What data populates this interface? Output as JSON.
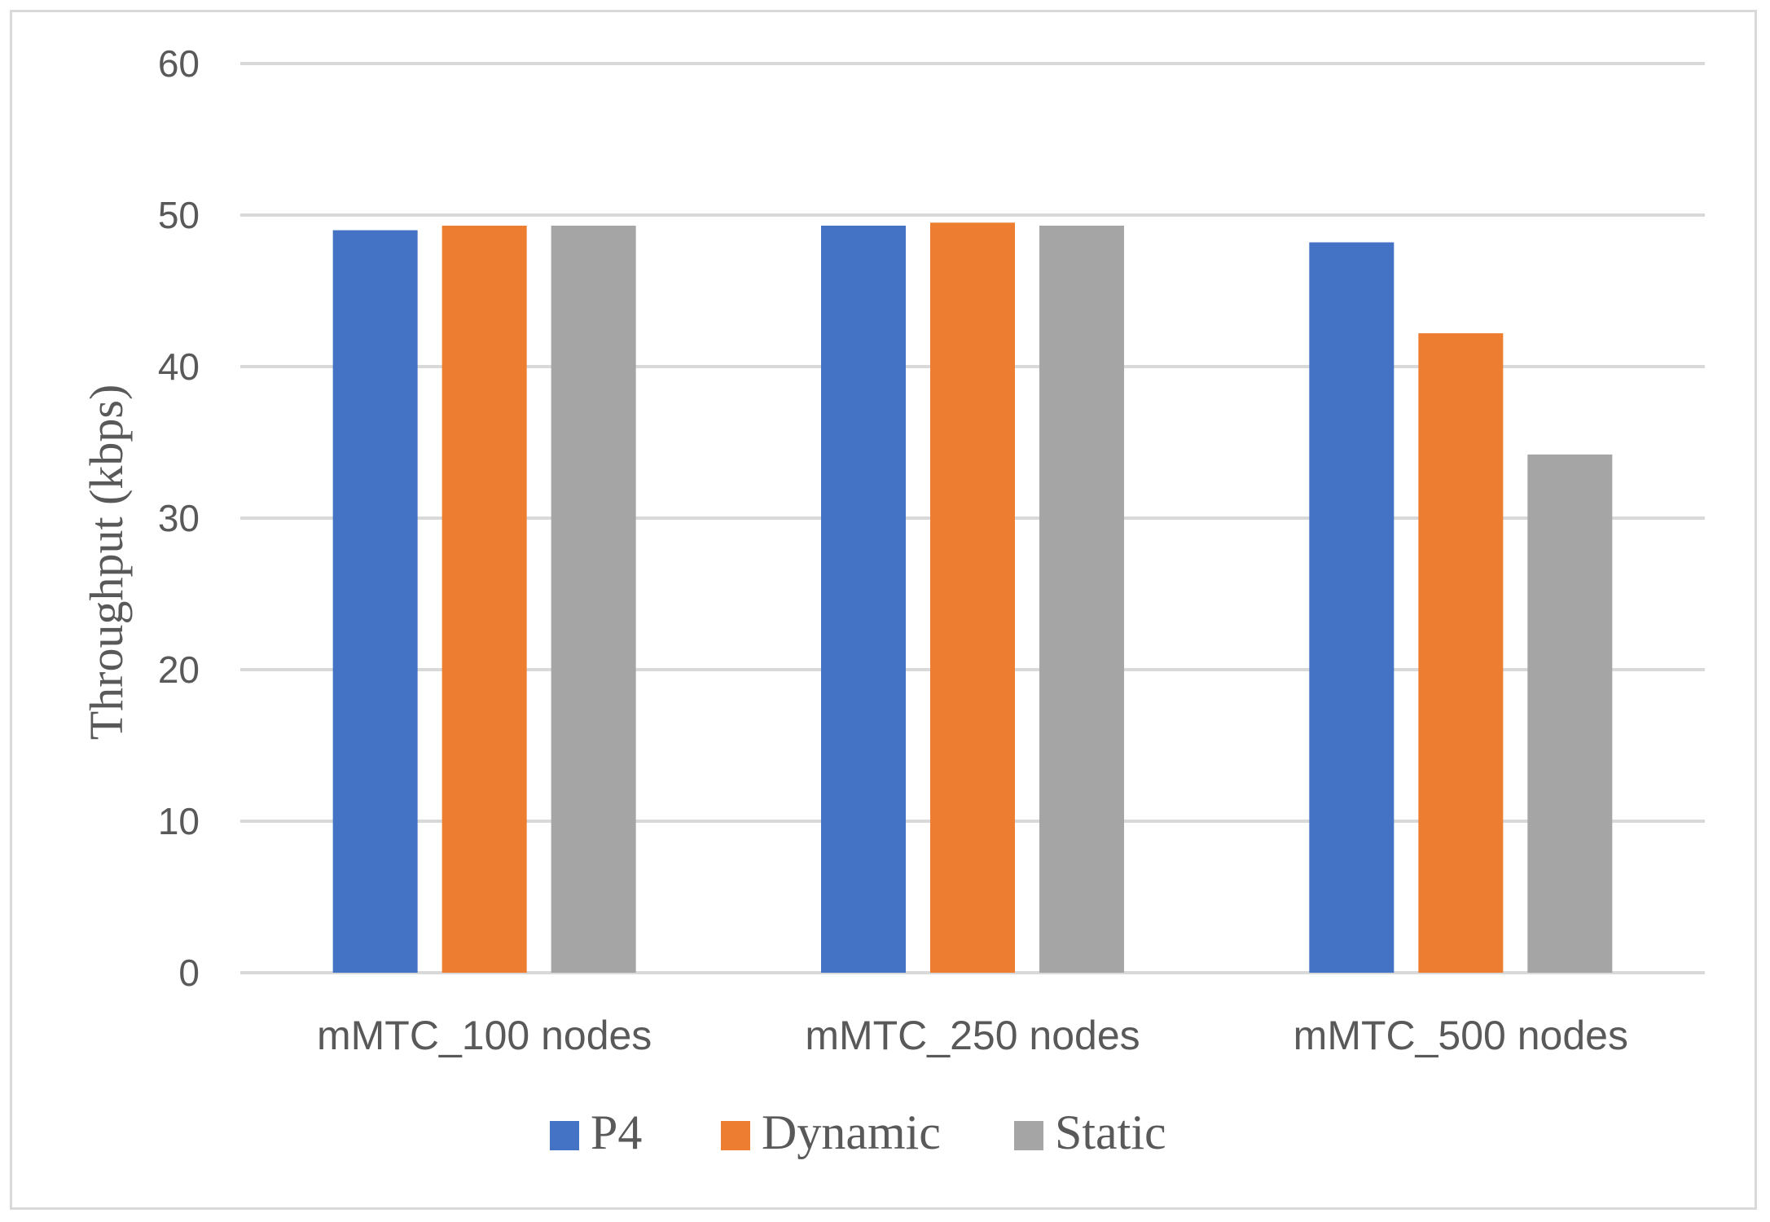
{
  "chart_data": {
    "type": "bar",
    "title": "",
    "xlabel": "",
    "ylabel": "Throughput (kbps)",
    "ylim": [
      0,
      60
    ],
    "yticks": [
      0,
      10,
      20,
      30,
      40,
      50,
      60
    ],
    "grid": true,
    "legend_position": "bottom",
    "categories": [
      "mMTC_100 nodes",
      "mMTC_250 nodes",
      "mMTC_500 nodes"
    ],
    "series": [
      {
        "name": "P4",
        "color": "#4472c4",
        "values": [
          49.0,
          49.3,
          48.2
        ]
      },
      {
        "name": "Dynamic",
        "color": "#ed7d31",
        "values": [
          49.3,
          49.5,
          42.2
        ]
      },
      {
        "name": "Static",
        "color": "#a5a5a5",
        "values": [
          49.3,
          49.3,
          34.2
        ]
      }
    ]
  }
}
